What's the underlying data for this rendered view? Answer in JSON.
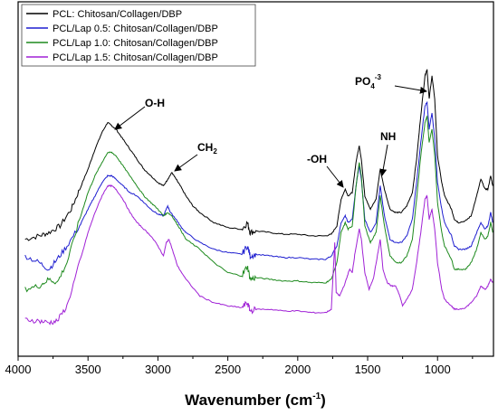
{
  "chart_data": {
    "type": "line",
    "title": "",
    "xlabel": "Wavenumber (cm",
    "xlabel_sup": "-1",
    "xlabel_close": ")",
    "ylabel": "",
    "xlim": [
      4000,
      600
    ],
    "ylim": [
      0,
      100
    ],
    "x_reversed": true,
    "x_ticks": [
      4000,
      3500,
      3000,
      2500,
      2000,
      1500,
      1000
    ],
    "legend_position": "top-left",
    "grid": false,
    "series": [
      {
        "name": "PCL: Chitosan/Collagen/DBP",
        "color": "#000000",
        "points": [
          [
            3950,
            31
          ],
          [
            3850,
            32
          ],
          [
            3780,
            33
          ],
          [
            3700,
            35
          ],
          [
            3620,
            40
          ],
          [
            3560,
            46
          ],
          [
            3500,
            52
          ],
          [
            3450,
            58
          ],
          [
            3400,
            63
          ],
          [
            3360,
            66
          ],
          [
            3330,
            65
          ],
          [
            3300,
            64
          ],
          [
            3250,
            61
          ],
          [
            3200,
            58
          ],
          [
            3150,
            55
          ],
          [
            3100,
            52
          ],
          [
            3050,
            50
          ],
          [
            3000,
            48
          ],
          [
            2960,
            47
          ],
          [
            2930,
            49
          ],
          [
            2900,
            51
          ],
          [
            2870,
            49
          ],
          [
            2840,
            47
          ],
          [
            2800,
            44
          ],
          [
            2750,
            41
          ],
          [
            2700,
            39
          ],
          [
            2600,
            36
          ],
          [
            2500,
            34.5
          ],
          [
            2400,
            34
          ],
          [
            2360,
            36
          ],
          [
            2340,
            33
          ],
          [
            2300,
            33.5
          ],
          [
            2200,
            33
          ],
          [
            2100,
            32.5
          ],
          [
            2000,
            32.5
          ],
          [
            1900,
            32
          ],
          [
            1800,
            32
          ],
          [
            1760,
            32.5
          ],
          [
            1720,
            35
          ],
          [
            1690,
            43
          ],
          [
            1660,
            46
          ],
          [
            1640,
            44
          ],
          [
            1610,
            45
          ],
          [
            1580,
            55
          ],
          [
            1560,
            59
          ],
          [
            1545,
            55
          ],
          [
            1520,
            44
          ],
          [
            1480,
            40
          ],
          [
            1440,
            43
          ],
          [
            1410,
            52
          ],
          [
            1380,
            46
          ],
          [
            1340,
            40
          ],
          [
            1300,
            39
          ],
          [
            1260,
            39
          ],
          [
            1220,
            41
          ],
          [
            1180,
            45
          ],
          [
            1150,
            55
          ],
          [
            1120,
            68
          ],
          [
            1090,
            80
          ],
          [
            1075,
            82
          ],
          [
            1060,
            73
          ],
          [
            1040,
            80
          ],
          [
            1020,
            73
          ],
          [
            1000,
            56
          ],
          [
            970,
            48
          ],
          [
            950,
            44
          ],
          [
            900,
            40
          ],
          [
            880,
            37
          ],
          [
            850,
            36
          ],
          [
            800,
            36.5
          ],
          [
            760,
            38
          ],
          [
            720,
            44
          ],
          [
            690,
            49
          ],
          [
            660,
            46
          ],
          [
            640,
            46
          ],
          [
            620,
            50
          ],
          [
            605,
            47
          ]
        ]
      },
      {
        "name": "PCL/Lap 0.5: Chitosan/Collagen/DBP",
        "color": "#1f1fd0",
        "points": [
          [
            3950,
            26
          ],
          [
            3850,
            24
          ],
          [
            3780,
            22
          ],
          [
            3720,
            25
          ],
          [
            3650,
            29
          ],
          [
            3560,
            35
          ],
          [
            3500,
            40
          ],
          [
            3450,
            44
          ],
          [
            3400,
            48
          ],
          [
            3360,
            50
          ],
          [
            3330,
            50
          ],
          [
            3300,
            49
          ],
          [
            3250,
            47
          ],
          [
            3200,
            45
          ],
          [
            3150,
            44
          ],
          [
            3100,
            42
          ],
          [
            3050,
            40
          ],
          [
            3000,
            38.5
          ],
          [
            2960,
            38
          ],
          [
            2930,
            41
          ],
          [
            2910,
            39
          ],
          [
            2870,
            37
          ],
          [
            2840,
            35
          ],
          [
            2800,
            33
          ],
          [
            2700,
            30
          ],
          [
            2600,
            28
          ],
          [
            2500,
            27
          ],
          [
            2400,
            26.5
          ],
          [
            2360,
            29
          ],
          [
            2340,
            26
          ],
          [
            2300,
            26.5
          ],
          [
            2200,
            26
          ],
          [
            2100,
            25.5
          ],
          [
            2000,
            25.5
          ],
          [
            1900,
            25
          ],
          [
            1800,
            25
          ],
          [
            1760,
            26
          ],
          [
            1720,
            29
          ],
          [
            1690,
            36
          ],
          [
            1660,
            38
          ],
          [
            1640,
            36
          ],
          [
            1610,
            37
          ],
          [
            1580,
            48
          ],
          [
            1560,
            53
          ],
          [
            1545,
            49
          ],
          [
            1520,
            37
          ],
          [
            1480,
            33
          ],
          [
            1440,
            36
          ],
          [
            1410,
            47
          ],
          [
            1380,
            38
          ],
          [
            1340,
            31
          ],
          [
            1300,
            30
          ],
          [
            1260,
            30
          ],
          [
            1220,
            32
          ],
          [
            1180,
            37
          ],
          [
            1150,
            48
          ],
          [
            1120,
            60
          ],
          [
            1090,
            71
          ],
          [
            1075,
            72
          ],
          [
            1060,
            64
          ],
          [
            1040,
            69
          ],
          [
            1020,
            61
          ],
          [
            1000,
            48
          ],
          [
            970,
            40
          ],
          [
            950,
            36
          ],
          [
            900,
            32
          ],
          [
            880,
            29
          ],
          [
            850,
            28
          ],
          [
            800,
            28
          ],
          [
            760,
            29
          ],
          [
            720,
            33
          ],
          [
            690,
            36
          ],
          [
            660,
            34
          ],
          [
            640,
            35
          ],
          [
            620,
            39
          ],
          [
            605,
            36
          ]
        ]
      },
      {
        "name": "PCL/Lap 1.0: Chitosan/Collagen/DBP",
        "color": "#1e8a1e",
        "points": [
          [
            3950,
            16
          ],
          [
            3850,
            17
          ],
          [
            3780,
            19
          ],
          [
            3720,
            18
          ],
          [
            3650,
            24
          ],
          [
            3560,
            37
          ],
          [
            3500,
            45
          ],
          [
            3450,
            50
          ],
          [
            3400,
            54
          ],
          [
            3360,
            57
          ],
          [
            3330,
            57
          ],
          [
            3300,
            56
          ],
          [
            3250,
            53
          ],
          [
            3200,
            50
          ],
          [
            3150,
            47
          ],
          [
            3100,
            44
          ],
          [
            3050,
            42
          ],
          [
            3000,
            40
          ],
          [
            2960,
            38
          ],
          [
            2930,
            39
          ],
          [
            2900,
            38
          ],
          [
            2870,
            36
          ],
          [
            2840,
            34
          ],
          [
            2800,
            31
          ],
          [
            2700,
            28
          ],
          [
            2600,
            24
          ],
          [
            2500,
            21
          ],
          [
            2400,
            20
          ],
          [
            2360,
            23
          ],
          [
            2340,
            19
          ],
          [
            2300,
            19.5
          ],
          [
            2200,
            19
          ],
          [
            2100,
            18.5
          ],
          [
            2000,
            18.5
          ],
          [
            1900,
            18
          ],
          [
            1800,
            18
          ],
          [
            1760,
            19
          ],
          [
            1720,
            24
          ],
          [
            1690,
            33
          ],
          [
            1660,
            36
          ],
          [
            1640,
            34
          ],
          [
            1610,
            35
          ],
          [
            1580,
            48
          ],
          [
            1560,
            54
          ],
          [
            1545,
            50
          ],
          [
            1520,
            35
          ],
          [
            1480,
            30
          ],
          [
            1440,
            33
          ],
          [
            1410,
            44
          ],
          [
            1380,
            35
          ],
          [
            1340,
            26
          ],
          [
            1300,
            24
          ],
          [
            1260,
            24
          ],
          [
            1220,
            26
          ],
          [
            1180,
            31
          ],
          [
            1150,
            43
          ],
          [
            1120,
            56
          ],
          [
            1090,
            66
          ],
          [
            1075,
            68
          ],
          [
            1060,
            60
          ],
          [
            1040,
            64
          ],
          [
            1020,
            56
          ],
          [
            1000,
            42
          ],
          [
            970,
            33
          ],
          [
            950,
            29
          ],
          [
            900,
            25
          ],
          [
            880,
            22
          ],
          [
            850,
            22
          ],
          [
            800,
            22
          ],
          [
            760,
            24
          ],
          [
            720,
            28
          ],
          [
            690,
            33
          ],
          [
            660,
            31
          ],
          [
            640,
            32
          ],
          [
            620,
            36
          ],
          [
            605,
            33
          ]
        ]
      },
      {
        "name": "PCL/Lap 1.5: Chitosan/Collagen/DBP",
        "color": "#a021d6",
        "points": [
          [
            3950,
            7
          ],
          [
            3850,
            6.5
          ],
          [
            3780,
            6
          ],
          [
            3720,
            6.5
          ],
          [
            3650,
            11
          ],
          [
            3560,
            24
          ],
          [
            3500,
            33
          ],
          [
            3450,
            39
          ],
          [
            3400,
            44
          ],
          [
            3360,
            47
          ],
          [
            3330,
            47
          ],
          [
            3300,
            46
          ],
          [
            3250,
            43
          ],
          [
            3200,
            39
          ],
          [
            3150,
            36
          ],
          [
            3100,
            34
          ],
          [
            3050,
            32
          ],
          [
            3000,
            29
          ],
          [
            2960,
            26
          ],
          [
            2940,
            30
          ],
          [
            2920,
            31
          ],
          [
            2890,
            27
          ],
          [
            2860,
            23
          ],
          [
            2800,
            19
          ],
          [
            2700,
            14
          ],
          [
            2600,
            12
          ],
          [
            2500,
            11
          ],
          [
            2400,
            10.5
          ],
          [
            2360,
            12
          ],
          [
            2340,
            9.5
          ],
          [
            2300,
            10
          ],
          [
            2200,
            10
          ],
          [
            2100,
            9.5
          ],
          [
            2000,
            9.5
          ],
          [
            1900,
            9
          ],
          [
            1800,
            9
          ],
          [
            1760,
            10
          ],
          [
            1735,
            30
          ],
          [
            1725,
            15
          ],
          [
            1700,
            14
          ],
          [
            1660,
            18
          ],
          [
            1630,
            22
          ],
          [
            1610,
            21
          ],
          [
            1590,
            27
          ],
          [
            1560,
            34
          ],
          [
            1545,
            31
          ],
          [
            1520,
            21
          ],
          [
            1490,
            16
          ],
          [
            1460,
            19
          ],
          [
            1430,
            26
          ],
          [
            1410,
            31
          ],
          [
            1390,
            22
          ],
          [
            1360,
            18
          ],
          [
            1330,
            17
          ],
          [
            1300,
            17
          ],
          [
            1270,
            14
          ],
          [
            1250,
            11
          ],
          [
            1220,
            13
          ],
          [
            1180,
            16
          ],
          [
            1150,
            24
          ],
          [
            1120,
            33
          ],
          [
            1090,
            43
          ],
          [
            1075,
            44
          ],
          [
            1060,
            37
          ],
          [
            1040,
            40
          ],
          [
            1020,
            34
          ],
          [
            1000,
            24
          ],
          [
            970,
            16
          ],
          [
            950,
            13
          ],
          [
            900,
            11
          ],
          [
            880,
            10
          ],
          [
            850,
            10
          ],
          [
            800,
            10.5
          ],
          [
            760,
            12
          ],
          [
            720,
            14
          ],
          [
            690,
            17
          ],
          [
            660,
            16
          ],
          [
            640,
            17
          ],
          [
            620,
            19
          ],
          [
            605,
            18
          ]
        ]
      }
    ],
    "annotations": [
      {
        "label": "O-H",
        "at": [
          3330,
          66
        ]
      },
      {
        "label": "CH",
        "sub": "2",
        "at": [
          2890,
          50
        ]
      },
      {
        "label": "-OH",
        "at": [
          1640,
          46
        ]
      },
      {
        "label": "NH",
        "at": [
          1410,
          53
        ]
      },
      {
        "label": "PO",
        "sub": "4",
        "sup": "-3",
        "at": [
          1060,
          82
        ]
      }
    ]
  }
}
